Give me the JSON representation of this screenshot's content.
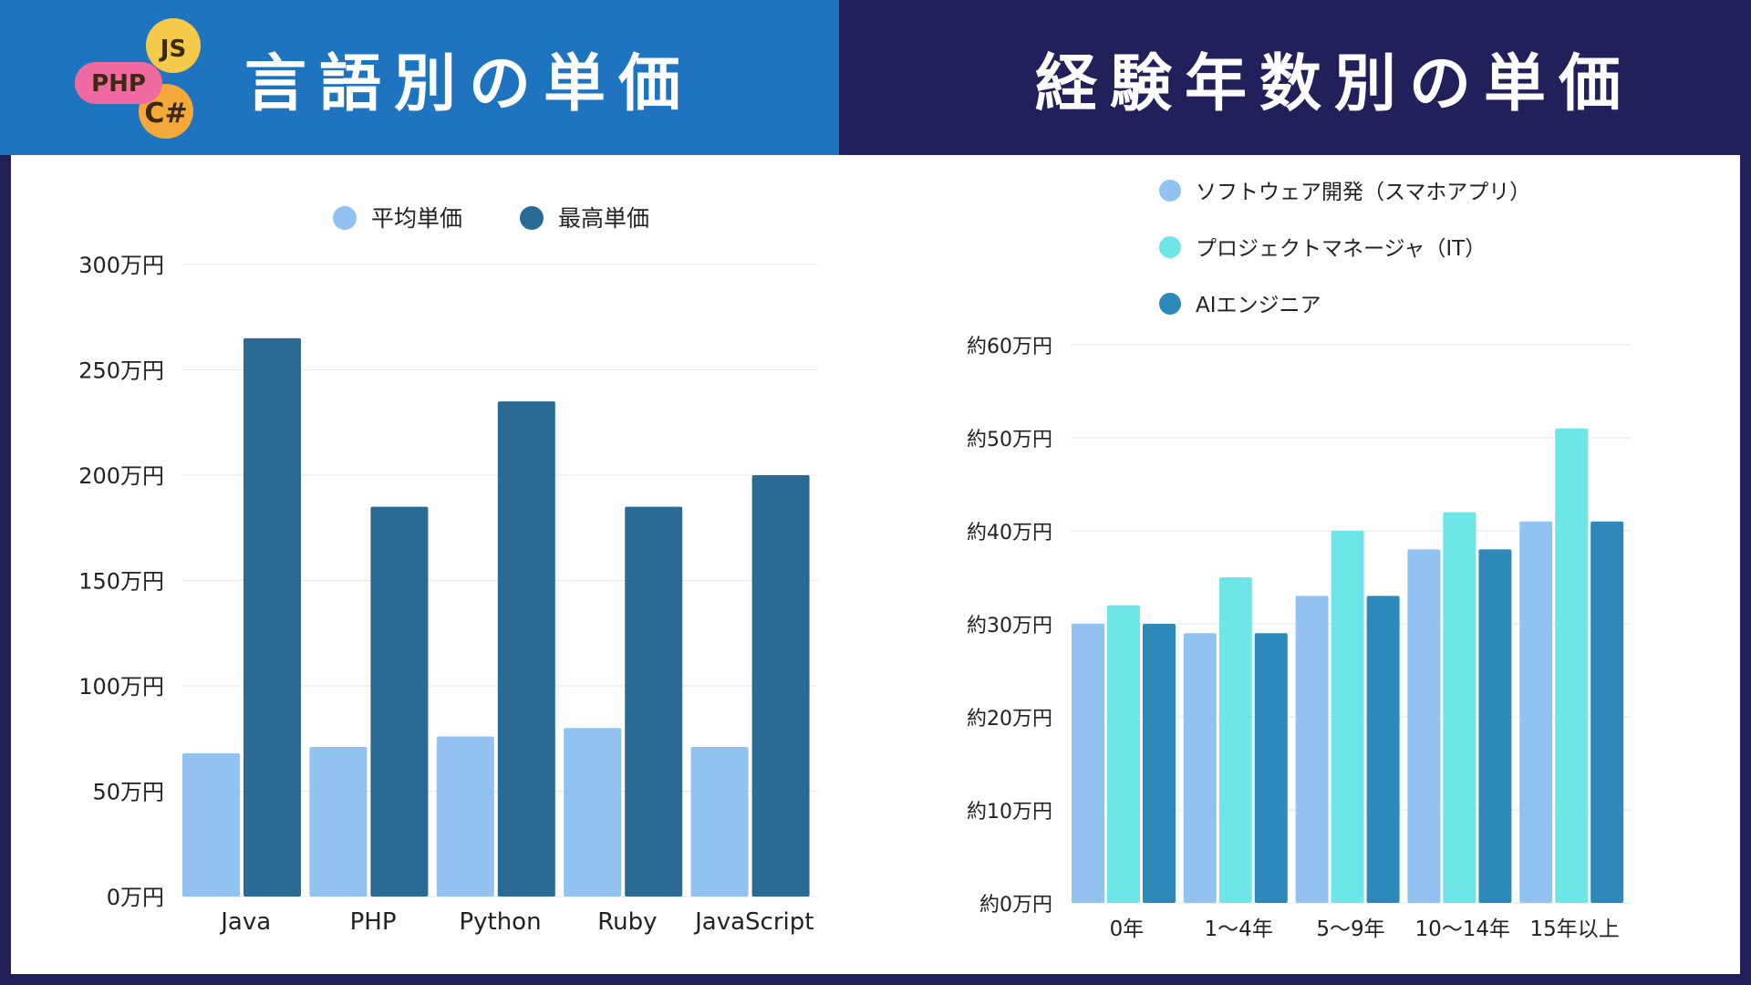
{
  "header": {
    "left_title": "言語別の単価",
    "right_title": "経験年数別の単価",
    "logo": {
      "labels": [
        "JS",
        "PHP",
        "C#"
      ],
      "colors": [
        "#f5c94a",
        "#ef6aa0",
        "#f5a93a"
      ]
    }
  },
  "colors": {
    "header_left_bg": "#1f74bf",
    "header_right_bg": "#22205a",
    "avg": "#92c2f0",
    "max": "#2b6a93",
    "software": "#92c2f0",
    "pm": "#6ee5e6",
    "ai": "#2e89bb"
  },
  "chart_data": [
    {
      "type": "bar",
      "title": "言語別の単価",
      "categories": [
        "Java",
        "PHP",
        "Python",
        "Ruby",
        "JavaScript"
      ],
      "series": [
        {
          "name": "平均単価",
          "values": [
            68,
            71,
            76,
            80,
            71
          ],
          "color": "#92c2f0"
        },
        {
          "name": "最高単価",
          "values": [
            265,
            185,
            235,
            185,
            200
          ],
          "color": "#2b6a93"
        }
      ],
      "ylim": [
        0,
        300
      ],
      "yticks": [
        0,
        50,
        100,
        150,
        200,
        250,
        300
      ],
      "ytick_labels": [
        "0万円",
        "50万円",
        "100万円",
        "150万円",
        "200万円",
        "250万円",
        "300万円"
      ],
      "grid": true,
      "legend": "top"
    },
    {
      "type": "bar",
      "title": "経験年数別の単価",
      "categories": [
        "0年",
        "1〜4年",
        "5〜9年",
        "10〜14年",
        "15年以上"
      ],
      "series": [
        {
          "name": "ソフトウェア開発（スマホアプリ）",
          "values": [
            30,
            29,
            33,
            38,
            41
          ],
          "color": "#92c2f0"
        },
        {
          "name": "プロジェクトマネージャ（IT）",
          "values": [
            32,
            35,
            40,
            42,
            51
          ],
          "color": "#6ee5e6"
        },
        {
          "name": "AIエンジニア",
          "values": [
            30,
            29,
            33,
            38,
            41
          ],
          "color": "#2e89bb"
        }
      ],
      "ylim": [
        0,
        60
      ],
      "yticks": [
        0,
        10,
        20,
        30,
        40,
        50,
        60
      ],
      "ytick_labels": [
        "約0万円",
        "約10万円",
        "約20万円",
        "約30万円",
        "約40万円",
        "約50万円",
        "約60万円"
      ],
      "grid": true,
      "legend": "top-left"
    }
  ]
}
